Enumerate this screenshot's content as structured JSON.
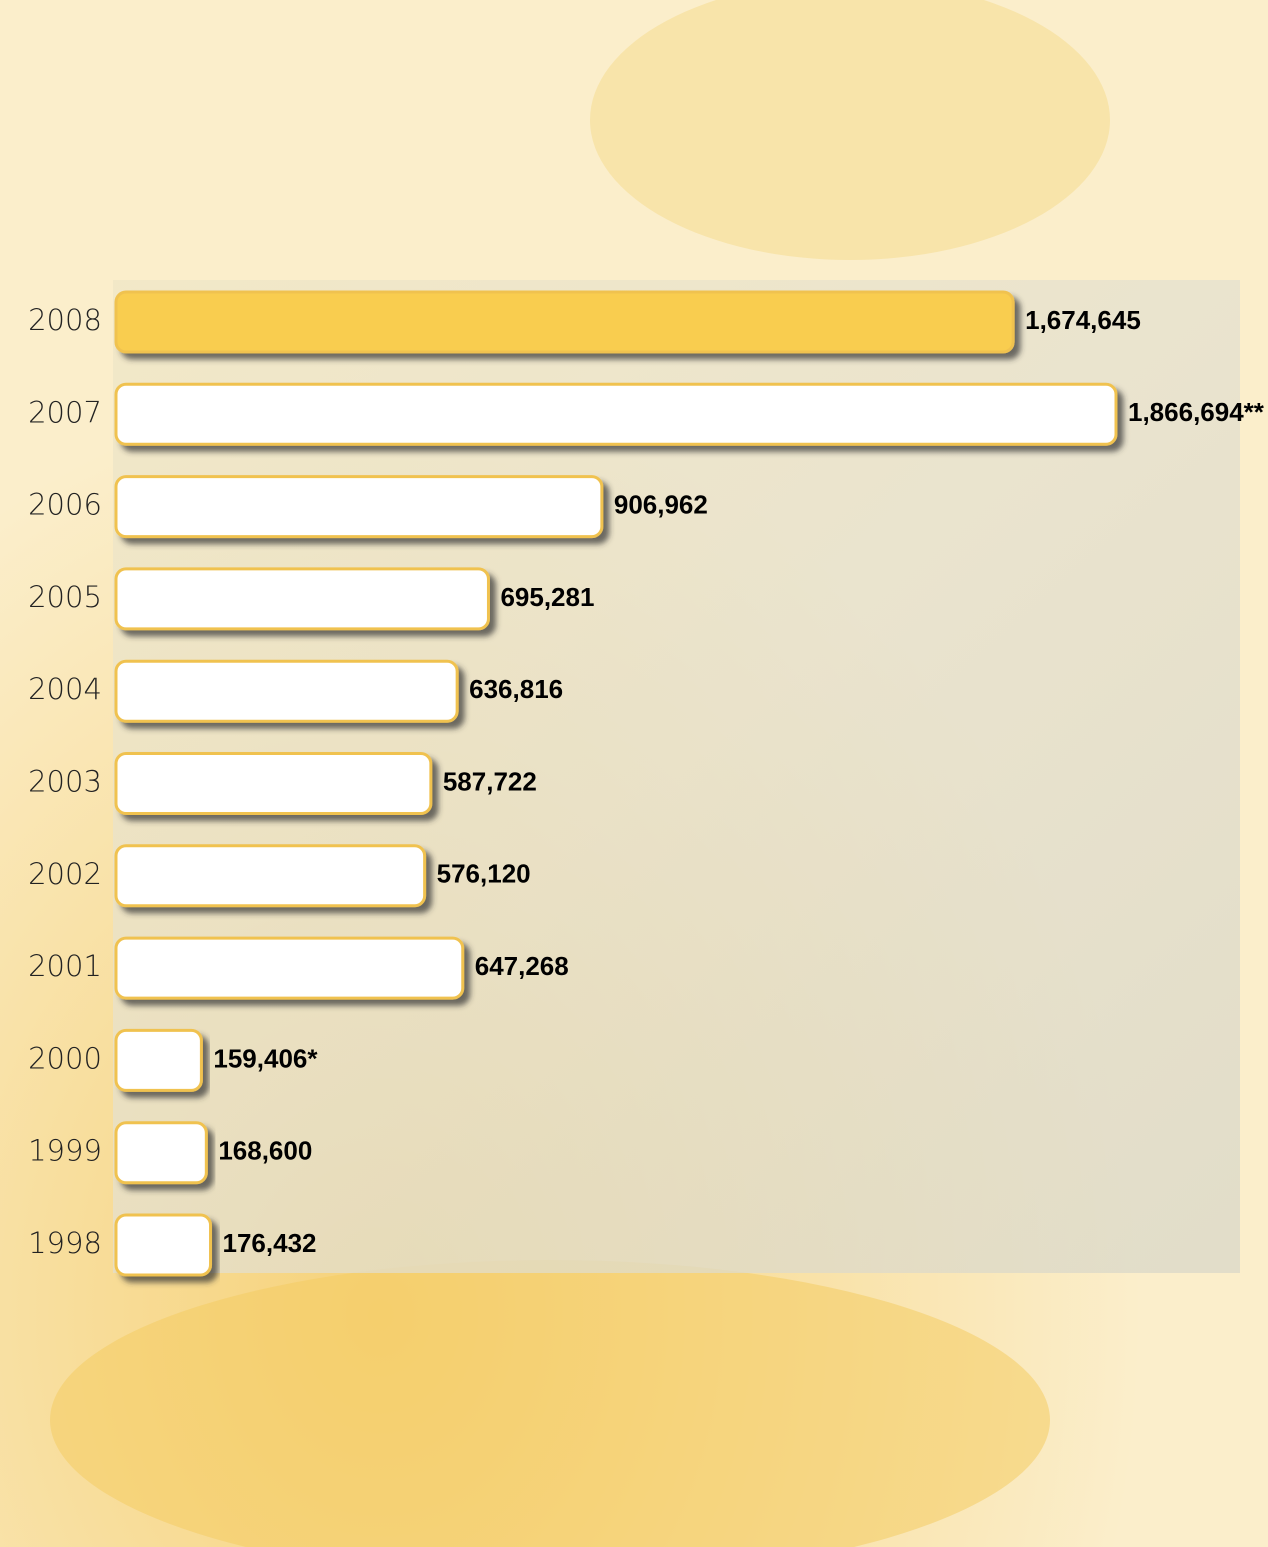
{
  "chart_data": {
    "type": "bar",
    "orientation": "horizontal",
    "categories": [
      "2008",
      "2007",
      "2006",
      "2005",
      "2004",
      "2003",
      "2002",
      "2001",
      "2000",
      "1999",
      "1998"
    ],
    "values": [
      1674645,
      1866694,
      906962,
      695281,
      636816,
      587722,
      576120,
      647268,
      159406,
      168600,
      176432
    ],
    "value_labels": [
      "1,674,645",
      "1,866,694**",
      "906,962",
      "695,281",
      "636,816",
      "587,722",
      "576,120",
      "647,268",
      "159,406*",
      "168,600",
      "176,432"
    ],
    "colors": [
      "#f9cd4f",
      "#ffffff",
      "#ffffff",
      "#ffffff",
      "#ffffff",
      "#ffffff",
      "#ffffff",
      "#ffffff",
      "#ffffff",
      "#ffffff",
      "#ffffff"
    ],
    "stroke": "#f0c250"
  }
}
